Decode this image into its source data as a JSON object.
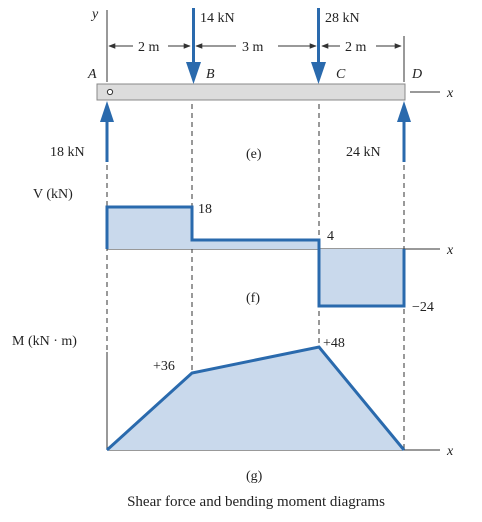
{
  "colors": {
    "blue": "#2a6aad",
    "fill": "#c9d9ec",
    "beam": "#dcdcdc",
    "line": "#333333"
  },
  "loads": {
    "b_label": "14 kN",
    "c_label": "28 kN",
    "reaction_a": "18 kN",
    "reaction_d": "24 kN"
  },
  "axes": {
    "y_label": "y",
    "x_label": "x",
    "v_label": "V (kN)",
    "m_label": "M (kN · m)"
  },
  "points": {
    "a": "A",
    "b": "B",
    "c": "C",
    "d": "D"
  },
  "dims": {
    "ab": "2 m",
    "bc": "3 m",
    "cd": "2 m"
  },
  "panels": {
    "e": "(e)",
    "f": "(f)",
    "g": "(g)"
  },
  "shear": {
    "v1": "18",
    "v2": "4",
    "v3": "−24"
  },
  "moment": {
    "m1": "+36",
    "m2": "+48"
  },
  "caption": "Shear force and bending moment diagrams",
  "chart_data": {
    "type": "area",
    "x_positions_m": [
      0,
      2,
      5,
      7
    ],
    "shear": {
      "x": [
        0,
        2,
        2,
        5,
        5,
        7
      ],
      "values_kN": [
        18,
        18,
        4,
        4,
        -24,
        -24
      ]
    },
    "moment": {
      "x": [
        0,
        2,
        5,
        7
      ],
      "values_kNm": [
        0,
        36,
        48,
        0
      ]
    }
  }
}
